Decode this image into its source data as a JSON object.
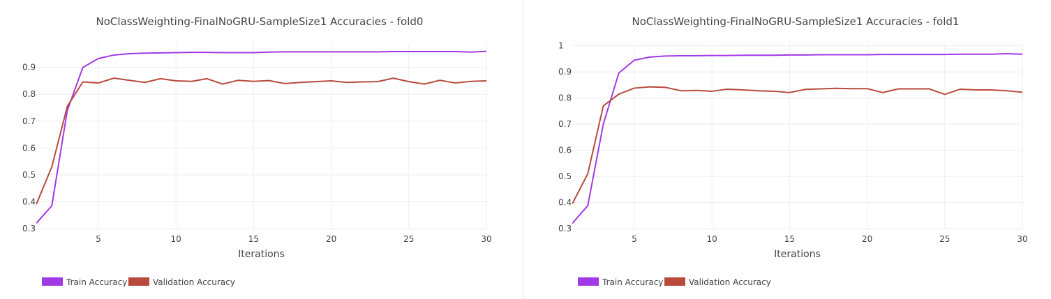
{
  "chart_data": [
    {
      "type": "line",
      "title": "NoClassWeighting-FinalNoGRU-SampleSize1 Accuracies - fold0",
      "xlabel": "Iterations",
      "ylabel": "",
      "xlim": [
        1,
        30
      ],
      "ylim": [
        0.3,
        0.99
      ],
      "x_ticks": [
        5,
        10,
        15,
        20,
        25,
        30
      ],
      "y_ticks": [
        0.3,
        0.4,
        0.5,
        0.6,
        0.7,
        0.8,
        0.9
      ],
      "y_tick_labels": [
        "0.3",
        "0.4",
        "0.5",
        "0.6",
        "0.7",
        "0.8",
        "0.9"
      ],
      "grid": true,
      "legend_position": "bottom-left",
      "x": [
        1,
        2,
        3,
        4,
        5,
        6,
        7,
        8,
        9,
        10,
        11,
        12,
        13,
        14,
        15,
        16,
        17,
        18,
        19,
        20,
        21,
        22,
        23,
        24,
        25,
        26,
        27,
        28,
        29,
        30
      ],
      "series": [
        {
          "name": "Train Accuracy",
          "color": "#a13ae6",
          "values": [
            0.32,
            0.385,
            0.74,
            0.9,
            0.933,
            0.946,
            0.951,
            0.953,
            0.954,
            0.955,
            0.956,
            0.956,
            0.955,
            0.955,
            0.955,
            0.957,
            0.958,
            0.958,
            0.958,
            0.958,
            0.958,
            0.958,
            0.958,
            0.959,
            0.959,
            0.959,
            0.959,
            0.959,
            0.957,
            0.96
          ]
        },
        {
          "name": "Validation Accuracy",
          "color": "#b84a3b",
          "values": [
            0.39,
            0.53,
            0.755,
            0.846,
            0.842,
            0.86,
            0.852,
            0.844,
            0.858,
            0.85,
            0.848,
            0.858,
            0.838,
            0.852,
            0.848,
            0.851,
            0.84,
            0.844,
            0.847,
            0.85,
            0.844,
            0.846,
            0.847,
            0.86,
            0.847,
            0.838,
            0.852,
            0.842,
            0.848,
            0.85
          ]
        }
      ]
    },
    {
      "type": "line",
      "title": "NoClassWeighting-FinalNoGRU-SampleSize1 Accuracies - fold1",
      "xlabel": "Iterations",
      "ylabel": "",
      "xlim": [
        1,
        30
      ],
      "ylim": [
        0.3,
        1.01
      ],
      "x_ticks": [
        5,
        10,
        15,
        20,
        25,
        30
      ],
      "y_ticks": [
        0.3,
        0.4,
        0.5,
        0.6,
        0.7,
        0.8,
        0.9,
        1.0
      ],
      "y_tick_labels": [
        "0.3",
        "0.4",
        "0.5",
        "0.6",
        "0.7",
        "0.8",
        "0.9",
        "1"
      ],
      "grid": true,
      "legend_position": "bottom-left",
      "x": [
        1,
        2,
        3,
        4,
        5,
        6,
        7,
        8,
        9,
        10,
        11,
        12,
        13,
        14,
        15,
        16,
        17,
        18,
        19,
        20,
        21,
        22,
        23,
        24,
        25,
        26,
        27,
        28,
        29,
        30
      ],
      "series": [
        {
          "name": "Train Accuracy",
          "color": "#a13ae6",
          "values": [
            0.32,
            0.388,
            0.7,
            0.896,
            0.945,
            0.957,
            0.961,
            0.962,
            0.962,
            0.963,
            0.963,
            0.964,
            0.964,
            0.964,
            0.965,
            0.965,
            0.966,
            0.966,
            0.966,
            0.966,
            0.967,
            0.967,
            0.967,
            0.967,
            0.967,
            0.968,
            0.968,
            0.968,
            0.97,
            0.968
          ]
        },
        {
          "name": "Validation Accuracy",
          "color": "#b84a3b",
          "values": [
            0.395,
            0.51,
            0.77,
            0.815,
            0.838,
            0.843,
            0.841,
            0.828,
            0.829,
            0.826,
            0.834,
            0.831,
            0.828,
            0.826,
            0.821,
            0.833,
            0.835,
            0.837,
            0.836,
            0.836,
            0.821,
            0.835,
            0.835,
            0.835,
            0.814,
            0.834,
            0.831,
            0.831,
            0.828,
            0.822
          ]
        }
      ]
    }
  ]
}
